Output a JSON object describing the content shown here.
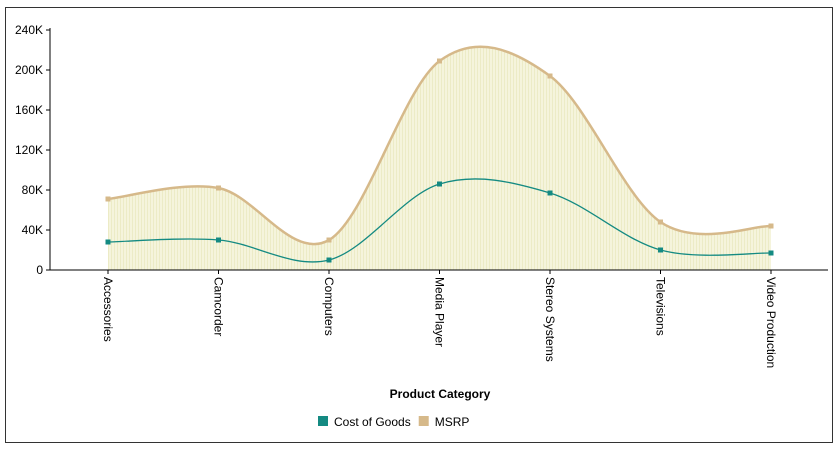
{
  "chart_data": {
    "type": "area",
    "title": "",
    "xlabel": "Product Category",
    "ylabel": "",
    "categories": [
      "Accessories",
      "Camcorder",
      "Computers",
      "Media Player",
      "Stereo Systems",
      "Televisions",
      "Video Production"
    ],
    "series": [
      {
        "name": "Cost of Goods",
        "color": "#148a82",
        "values": [
          28000,
          30000,
          10000,
          86000,
          77000,
          20000,
          17000
        ]
      },
      {
        "name": "MSRP",
        "color": "#d6b98a",
        "values": [
          71000,
          82000,
          30000,
          209000,
          194000,
          48000,
          44000
        ]
      }
    ],
    "ylim": [
      0,
      240000
    ],
    "yticks": [
      {
        "value": 0,
        "label": "0"
      },
      {
        "value": 40000,
        "label": "40K"
      },
      {
        "value": 80000,
        "label": "80K"
      },
      {
        "value": 120000,
        "label": "120K"
      },
      {
        "value": 160000,
        "label": "160K"
      },
      {
        "value": 200000,
        "label": "200K"
      },
      {
        "value": 240000,
        "label": "240K"
      }
    ],
    "area_fill": "#f5f4dc",
    "grid": false,
    "legend": "bottom-center"
  }
}
